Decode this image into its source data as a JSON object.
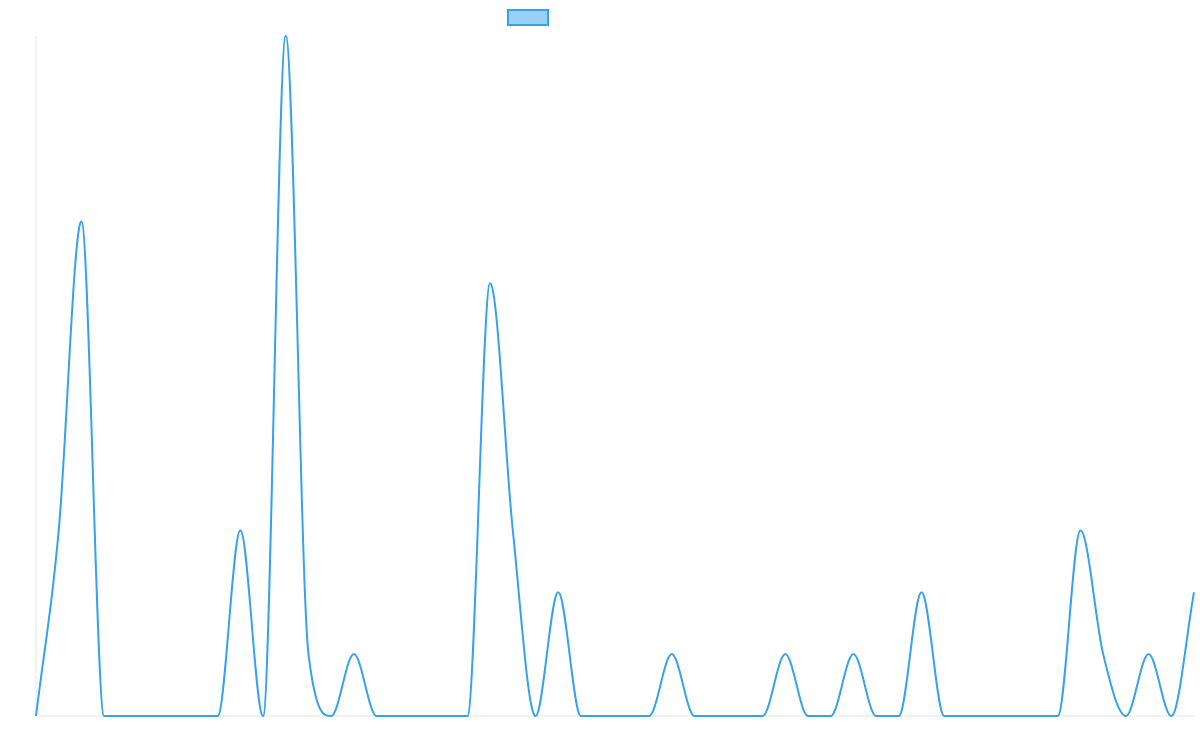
{
  "chart_data": {
    "type": "line",
    "series": [
      {
        "color": "#36a2eb",
        "legend_fill": "#9ad0f5",
        "values": [
          0,
          3,
          8,
          0,
          0,
          0,
          0,
          0,
          0,
          3,
          0,
          11,
          1,
          0,
          1,
          0,
          0,
          0,
          0,
          0,
          7,
          3,
          0,
          2,
          0,
          0,
          0,
          0,
          1,
          0,
          0,
          0,
          0,
          1,
          0,
          0,
          1,
          0,
          0,
          2,
          0,
          0,
          0,
          0,
          0,
          0,
          3,
          1,
          0,
          1,
          0,
          2
        ]
      }
    ],
    "ylim": [
      0,
      11
    ],
    "legend": "top"
  }
}
